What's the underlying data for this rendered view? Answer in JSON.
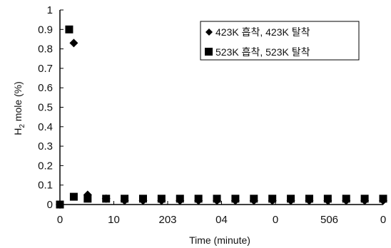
{
  "chart_data": {
    "type": "scatter",
    "xlabel": "Time (minute)",
    "ylabel": "H2 mole (%)",
    "ylabel_main": "H",
    "ylabel_sub": "2",
    "ylabel_rest": " mole (%)",
    "ylim": [
      0,
      1
    ],
    "xlim": [
      0,
      70
    ],
    "y_ticks": [
      "0",
      "0.1",
      "0.2",
      "0.3",
      "0.4",
      "0.5",
      "0.6",
      "0.7",
      "0.8",
      "0.9",
      "1"
    ],
    "x_tick_labels": [
      "0",
      "10",
      "203",
      "04",
      "0",
      "506",
      "0"
    ],
    "grid": false,
    "legend_position": "top-right",
    "series": [
      {
        "name": "423K 흡착, 423K 탈착",
        "marker": "diamond",
        "color": "#000000",
        "x": [
          0,
          3,
          6,
          10,
          14,
          18,
          22,
          26,
          30,
          34,
          38,
          42,
          46,
          50,
          54,
          58,
          62,
          66,
          70
        ],
        "y": [
          0.0,
          0.83,
          0.05,
          0.03,
          0.02,
          0.02,
          0.02,
          0.02,
          0.02,
          0.02,
          0.02,
          0.02,
          0.02,
          0.02,
          0.02,
          0.02,
          0.02,
          0.02,
          0.02
        ]
      },
      {
        "name": "523K 흡착, 523K 탈착",
        "marker": "square",
        "color": "#000000",
        "x": [
          0,
          2,
          3,
          6,
          10,
          14,
          18,
          22,
          26,
          30,
          34,
          38,
          42,
          46,
          50,
          54,
          58,
          62,
          66,
          70
        ],
        "y": [
          0.0,
          0.9,
          0.04,
          0.03,
          0.03,
          0.03,
          0.03,
          0.03,
          0.03,
          0.03,
          0.03,
          0.03,
          0.03,
          0.03,
          0.03,
          0.03,
          0.03,
          0.03,
          0.03,
          0.03
        ]
      }
    ]
  }
}
